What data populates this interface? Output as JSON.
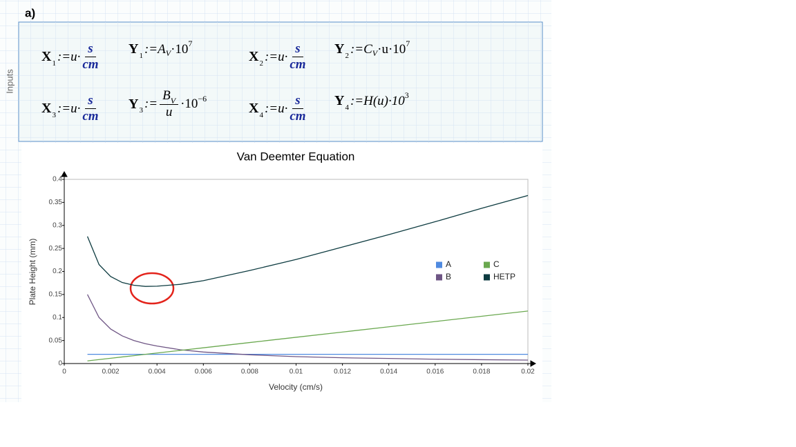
{
  "header": {
    "label": "a)"
  },
  "region": {
    "label": "Inputs"
  },
  "equations": {
    "x": [
      {
        "name": "X",
        "index": "1",
        "rhs": ":=u·",
        "num": "s",
        "den": "cm"
      },
      {
        "name": "X",
        "index": "2",
        "rhs": ":=u·",
        "num": "s",
        "den": "cm"
      },
      {
        "name": "X",
        "index": "3",
        "rhs": ":=u·",
        "num": "s",
        "den": "cm"
      },
      {
        "name": "X",
        "index": "4",
        "rhs": ":=u·",
        "num": "s",
        "den": "cm"
      }
    ],
    "y": [
      {
        "name": "Y",
        "index": "1",
        "rhs": ":=A",
        "rhs_sub": "V",
        "mult": "·10",
        "exp": "7"
      },
      {
        "name": "Y",
        "index": "2",
        "rhs": ":=C",
        "rhs_sub": "V",
        "mult": "·u·10",
        "exp": "7"
      },
      {
        "name": "Y",
        "index": "3",
        "rhs": ":=",
        "num": "B",
        "num_sub": "V",
        "den": "u",
        "mult": "·10",
        "exp": "−6"
      },
      {
        "name": "Y",
        "index": "4",
        "rhs": ":=H(u)·10",
        "exp": "3"
      }
    ]
  },
  "chart_data": {
    "type": "line",
    "title": "Van Deemter Equation",
    "x_label": "Velocity (cm/s)",
    "y_label": "Plate Height (mm)",
    "x": [
      0.001,
      0.0015,
      0.002,
      0.0025,
      0.003,
      0.0035,
      0.004,
      0.005,
      0.006,
      0.008,
      0.01,
      0.012,
      0.014,
      0.016,
      0.018,
      0.02
    ],
    "series": [
      {
        "name": "A",
        "color": "#4f8ae0",
        "values": [
          0.02,
          0.02,
          0.02,
          0.02,
          0.02,
          0.02,
          0.02,
          0.02,
          0.02,
          0.02,
          0.02,
          0.02,
          0.02,
          0.02,
          0.02,
          0.02
        ]
      },
      {
        "name": "B",
        "color": "#6e5584",
        "values": [
          0.15,
          0.1,
          0.075,
          0.06,
          0.05,
          0.043,
          0.038,
          0.03,
          0.025,
          0.019,
          0.015,
          0.0125,
          0.011,
          0.0094,
          0.0083,
          0.0075
        ]
      },
      {
        "name": "C",
        "color": "#6aa84f",
        "values": [
          0.0057,
          0.0086,
          0.0114,
          0.0143,
          0.0171,
          0.02,
          0.0228,
          0.0285,
          0.0342,
          0.0456,
          0.057,
          0.0684,
          0.0798,
          0.0912,
          0.1026,
          0.114
        ]
      },
      {
        "name": "HETP",
        "color": "#0d3b40",
        "values": [
          0.276,
          0.215,
          0.189,
          0.176,
          0.17,
          0.1675,
          0.168,
          0.172,
          0.18,
          0.202,
          0.226,
          0.253,
          0.28,
          0.308,
          0.337,
          0.365
        ]
      }
    ],
    "xlim": [
      0,
      0.02
    ],
    "ylim": [
      0,
      0.4
    ],
    "xticks": [
      0,
      0.002,
      0.004,
      0.006,
      0.008,
      0.01,
      0.012,
      0.014,
      0.016,
      0.018,
      0.02
    ],
    "yticks": [
      0,
      0.05,
      0.1,
      0.15,
      0.2,
      0.25,
      0.3,
      0.35,
      0.4
    ],
    "grid": false,
    "legend": "right"
  }
}
